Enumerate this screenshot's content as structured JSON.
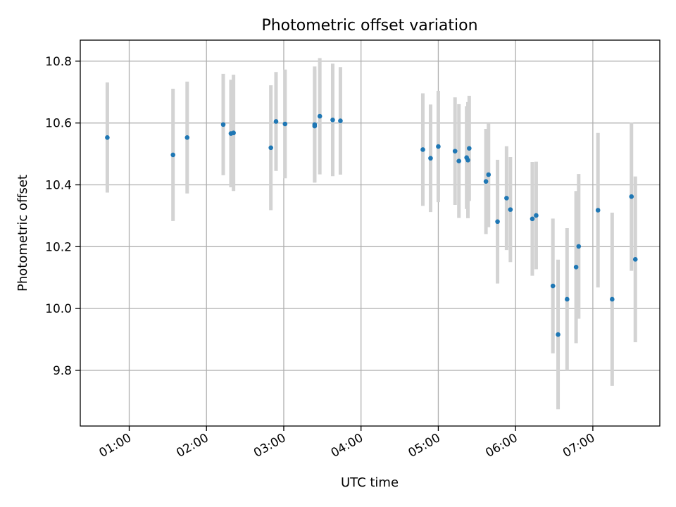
{
  "chart_data": {
    "type": "scatter",
    "title": "Photometric offset variation",
    "xlabel": "UTC time",
    "ylabel": "Photometric offset",
    "xlim": [
      "00:22",
      "07:52"
    ],
    "ylim": [
      9.62,
      10.868
    ],
    "x_ticks": [
      "01:00",
      "02:00",
      "03:00",
      "04:00",
      "05:00",
      "06:00",
      "07:00"
    ],
    "y_ticks": [
      "9.8",
      "10.0",
      "10.2",
      "10.4",
      "10.6",
      "10.8"
    ],
    "grid": true,
    "legend": false,
    "series": [
      {
        "marker_color": "#1f77b4",
        "errorbar_color": "#d3d3d3",
        "points": [
          {
            "t": "00:43",
            "y": 10.553,
            "err": 0.178
          },
          {
            "t": "01:34",
            "y": 10.497,
            "err": 0.214
          },
          {
            "t": "01:45",
            "y": 10.553,
            "err": 0.181
          },
          {
            "t": "02:13",
            "y": 10.595,
            "err": 0.164
          },
          {
            "t": "02:19",
            "y": 10.566,
            "err": 0.174
          },
          {
            "t": "02:21",
            "y": 10.568,
            "err": 0.188
          },
          {
            "t": "02:50",
            "y": 10.52,
            "err": 0.202
          },
          {
            "t": "02:54",
            "y": 10.605,
            "err": 0.16
          },
          {
            "t": "03:01",
            "y": 10.597,
            "err": 0.176
          },
          {
            "t": "03:24",
            "y": 10.59,
            "err": 0.182
          },
          {
            "t": "03:24",
            "y": 10.595,
            "err": 0.188
          },
          {
            "t": "03:28",
            "y": 10.622,
            "err": 0.188
          },
          {
            "t": "03:38",
            "y": 10.61,
            "err": 0.182
          },
          {
            "t": "03:44",
            "y": 10.607,
            "err": 0.174
          },
          {
            "t": "04:48",
            "y": 10.514,
            "err": 0.182
          },
          {
            "t": "04:54",
            "y": 10.486,
            "err": 0.174
          },
          {
            "t": "04:60",
            "y": 10.524,
            "err": 0.18
          },
          {
            "t": "05:13",
            "y": 10.509,
            "err": 0.174
          },
          {
            "t": "05:16",
            "y": 10.477,
            "err": 0.184
          },
          {
            "t": "05:22",
            "y": 10.488,
            "err": 0.166
          },
          {
            "t": "05:23",
            "y": 10.48,
            "err": 0.188
          },
          {
            "t": "05:24",
            "y": 10.518,
            "err": 0.17
          },
          {
            "t": "05:37",
            "y": 10.411,
            "err": 0.17
          },
          {
            "t": "05:39",
            "y": 10.433,
            "err": 0.17
          },
          {
            "t": "05:46",
            "y": 10.281,
            "err": 0.2
          },
          {
            "t": "05:53",
            "y": 10.357,
            "err": 0.168
          },
          {
            "t": "05:56",
            "y": 10.32,
            "err": 0.17
          },
          {
            "t": "06:13",
            "y": 10.29,
            "err": 0.184
          },
          {
            "t": "06:16",
            "y": 10.301,
            "err": 0.174
          },
          {
            "t": "06:29",
            "y": 10.073,
            "err": 0.218
          },
          {
            "t": "06:33",
            "y": 9.916,
            "err": 0.242
          },
          {
            "t": "06:40",
            "y": 10.03,
            "err": 0.23
          },
          {
            "t": "06:47",
            "y": 10.134,
            "err": 0.246
          },
          {
            "t": "06:49",
            "y": 10.201,
            "err": 0.234
          },
          {
            "t": "07:04",
            "y": 10.318,
            "err": 0.25
          },
          {
            "t": "07:15",
            "y": 10.03,
            "err": 0.28
          },
          {
            "t": "07:30",
            "y": 10.362,
            "err": 0.24
          },
          {
            "t": "07:33",
            "y": 10.159,
            "err": 0.268
          }
        ]
      }
    ]
  }
}
